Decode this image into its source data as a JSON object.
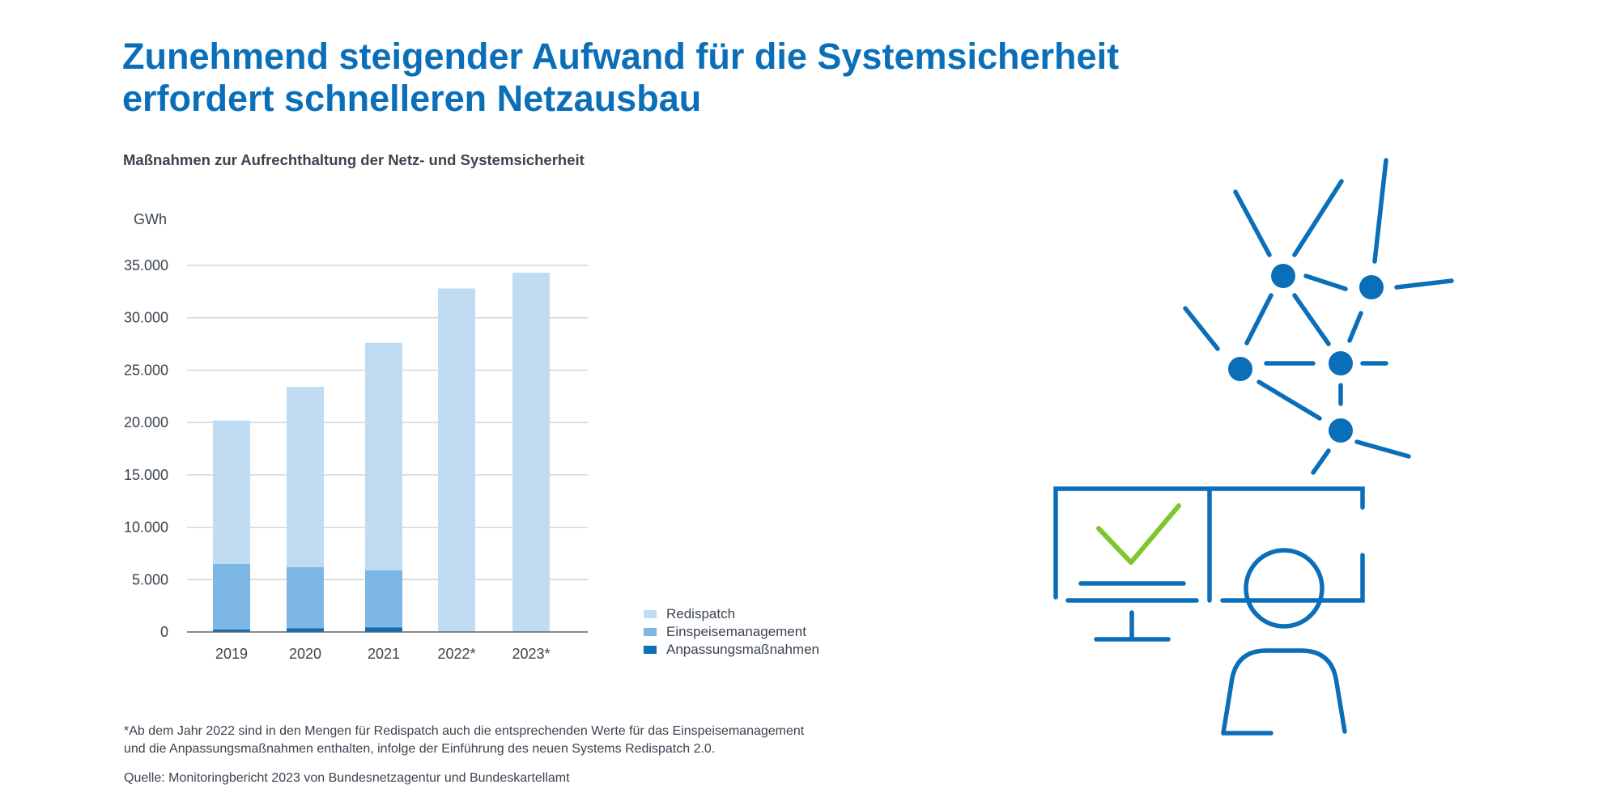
{
  "title_lines": [
    "Zunehmend steigender Aufwand für die Systemsicherheit",
    "erfordert schnelleren Netzausbau"
  ],
  "subtitle": "Maßnahmen zur Aufrechthaltung der Netz- und Systemsicherheit",
  "colors": {
    "title": "#0a6fb8",
    "redispatch": "#bfdcf2",
    "einspeisemanagement": "#7db7e5",
    "anpassungsmassnahmen": "#0a6fb8",
    "illustration_blue": "#0a6fb8",
    "checkmark_green": "#7ec72b"
  },
  "chart_data": {
    "type": "bar",
    "stacked": true,
    "unit_label": "GWh",
    "categories": [
      "2019",
      "2020",
      "2021",
      "2022*",
      "2023*"
    ],
    "series": [
      {
        "name": "Anpassungsmaßnahmen",
        "values": [
          250,
          350,
          450,
          0,
          0
        ]
      },
      {
        "name": "Einspeisemanagement",
        "values": [
          6250,
          5850,
          5450,
          0,
          0
        ]
      },
      {
        "name": "Redispatch",
        "values": [
          13700,
          17200,
          21700,
          32800,
          34300
        ]
      }
    ],
    "ylim": [
      0,
      35000
    ],
    "yticks": [
      0,
      5000,
      10000,
      15000,
      20000,
      25000,
      30000,
      35000
    ],
    "ytick_labels": [
      "0",
      "5.000",
      "10.000",
      "15.000",
      "20.000",
      "25.000",
      "30.000",
      "35.000"
    ],
    "grid": true,
    "legend_position": "right"
  },
  "legend": [
    {
      "label": "Redispatch",
      "color_key": "redispatch"
    },
    {
      "label": "Einspeisemanagement",
      "color_key": "einspeisemanagement"
    },
    {
      "label": "Anpassungsmaßnahmen",
      "color_key": "anpassungsmassnahmen"
    }
  ],
  "footnote_lines": [
    "*Ab dem Jahr 2022 sind in den Mengen für Redispatch auch die entsprechenden Werte für das Einspeisemanagement",
    "und die Anpassungsmaßnahmen enthalten, infolge der Einführung des neuen Systems Redispatch 2.0."
  ],
  "source": "Quelle: Monitoringbericht 2023 von Bundesnetzagentur und Bundeskartellamt",
  "illustration": {
    "icons": [
      "network-icon",
      "monitor-icon",
      "checkmark-icon",
      "person-icon"
    ]
  }
}
